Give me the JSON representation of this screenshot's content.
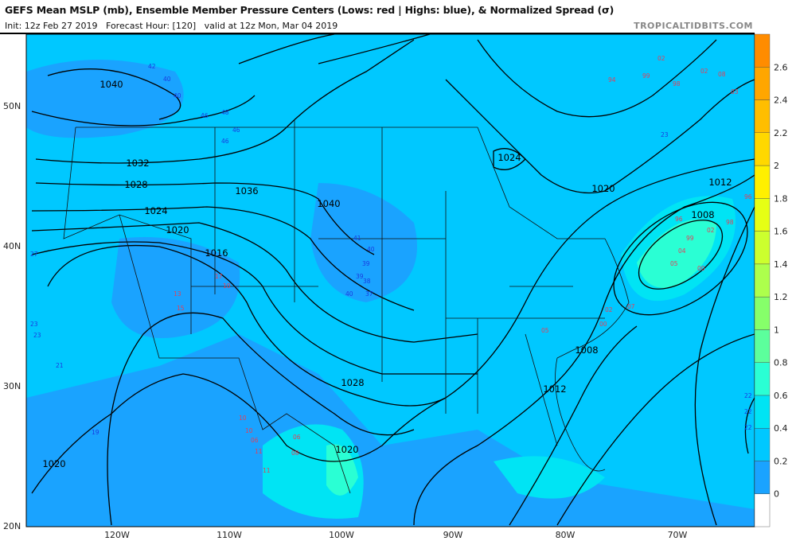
{
  "header": {
    "title": "GEFS Mean MSLP (mb), Ensemble Member Pressure Centers (Lows: red | Highs: blue), & Normalized Spread (σ)",
    "subtitle": "Init: 12z Feb 27 2019   Forecast Hour: [120]   valid at 12z Mon, Mar 04 2019",
    "site": "TROPICALTIDBITS.COM"
  },
  "map": {
    "lat_labels": [
      "50N",
      "40N",
      "30N",
      "20N"
    ],
    "lon_labels": [
      "120W",
      "110W",
      "100W",
      "90W",
      "80W",
      "70W"
    ],
    "background_color": "#1aa3ff",
    "contour_labels": [
      "1040",
      "1032",
      "1028",
      "1024",
      "1020",
      "1016",
      "1036",
      "1040",
      "1024",
      "1020",
      "1012",
      "1008",
      "1008",
      "1012",
      "1028",
      "1020",
      "1020"
    ],
    "lows": [
      "02",
      "94",
      "99",
      "98",
      "02",
      "08",
      "03",
      "96",
      "99",
      "04",
      "02",
      "98",
      "96",
      "05",
      "00",
      "02",
      "07",
      "00",
      "10",
      "10",
      "06",
      "06",
      "08",
      "11",
      "13",
      "15",
      "17",
      "10",
      "11",
      "05"
    ],
    "highs": [
      "42",
      "40",
      "40",
      "46",
      "48",
      "46",
      "46",
      "41",
      "40",
      "39",
      "39",
      "38",
      "40",
      "37",
      "27",
      "23",
      "23",
      "21",
      "19",
      "23",
      "22",
      "22",
      "22"
    ]
  },
  "colorbar": {
    "ticks": [
      "2.6",
      "2.4",
      "2.2",
      "2",
      "1.8",
      "1.6",
      "1.4",
      "1.2",
      "1",
      "0.8",
      "0.6",
      "0.4",
      "0.2",
      "0"
    ],
    "colors": [
      "#ffffff",
      "#1aa3ff",
      "#00c8ff",
      "#00e4f4",
      "#2affd4",
      "#5cff9c",
      "#86ff6a",
      "#adff4c",
      "#ccff2e",
      "#e6ff14",
      "#fff000",
      "#ffd800",
      "#ffbe00",
      "#ffa600",
      "#ff8c00"
    ]
  }
}
